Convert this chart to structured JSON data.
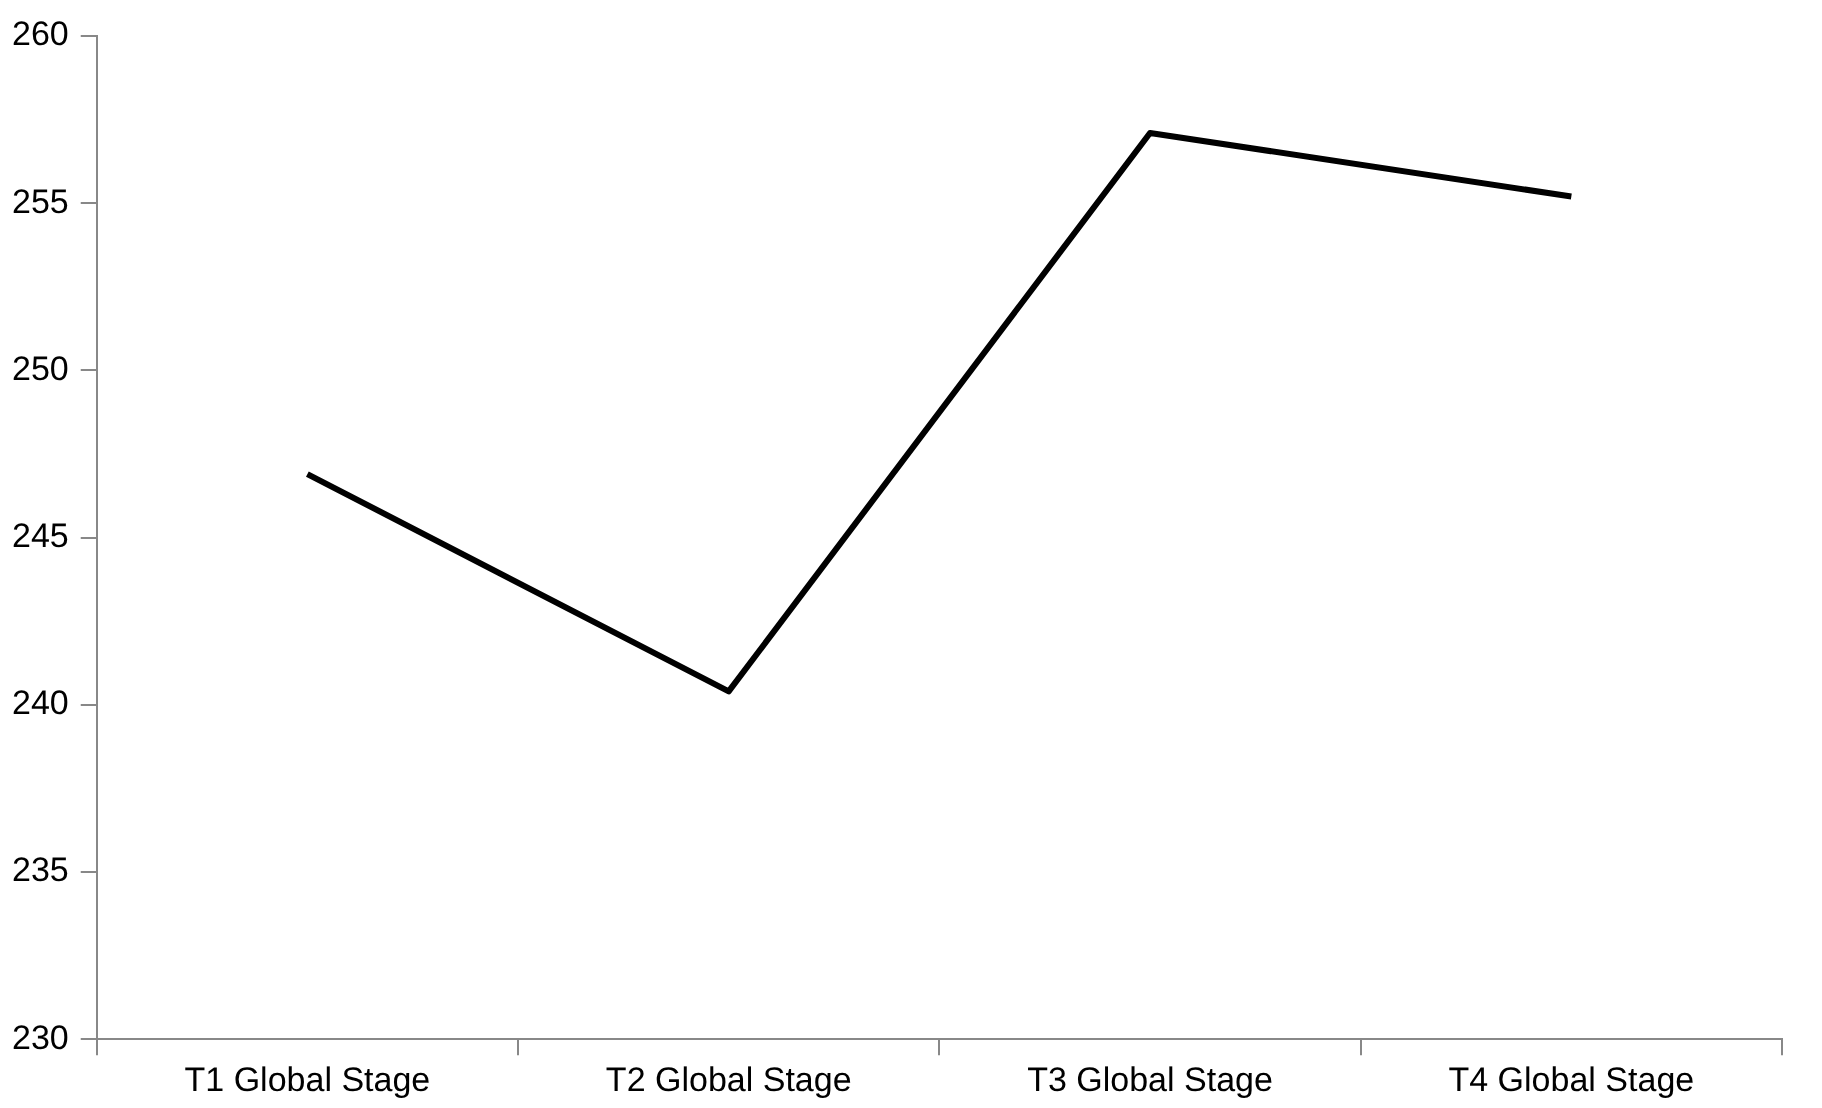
{
  "chart_data": {
    "type": "line",
    "categories": [
      "T1 Global Stage",
      "T2 Global Stage",
      "T3 Global Stage",
      "T4 Global Stage"
    ],
    "series": [
      {
        "color": "#000000",
        "values": [
          246.9,
          240.4,
          257.1,
          255.2
        ]
      }
    ],
    "ylim": [
      230,
      260
    ],
    "yticks": [
      230,
      235,
      240,
      245,
      250,
      255,
      260
    ],
    "grid": false,
    "legend": false,
    "marker": "none",
    "line_style": "solid"
  }
}
